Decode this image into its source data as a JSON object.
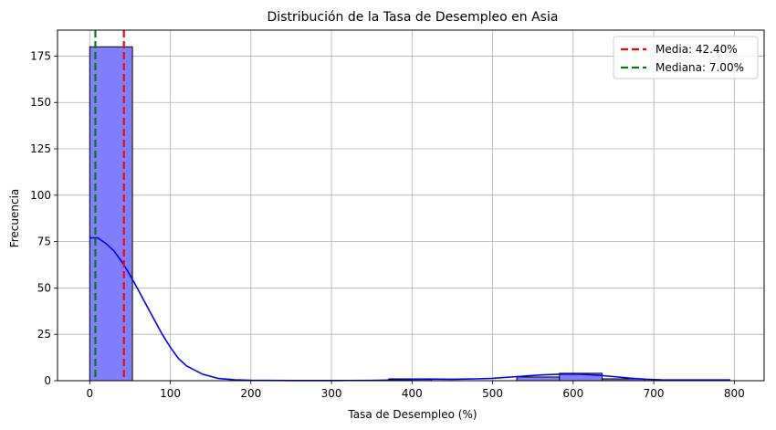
{
  "chart_data": {
    "type": "bar",
    "title": "Distribución de la Tasa de Desempleo en Asia",
    "xlabel": "Tasa de Desempleo (%)",
    "ylabel": "Frecuencia",
    "xlim": [
      -40,
      837
    ],
    "ylim": [
      0,
      189
    ],
    "xticks": [
      0,
      100,
      200,
      300,
      400,
      500,
      600,
      700,
      800
    ],
    "yticks": [
      0,
      25,
      50,
      75,
      100,
      125,
      150,
      175
    ],
    "grid": true,
    "legend_position": "top-right",
    "bar_color": "#8080ff",
    "bars": [
      {
        "x0": 0,
        "x1": 53,
        "count": 180
      },
      {
        "x0": 53,
        "x1": 106,
        "count": 0
      },
      {
        "x0": 106,
        "x1": 159,
        "count": 0
      },
      {
        "x0": 159,
        "x1": 212,
        "count": 0
      },
      {
        "x0": 212,
        "x1": 265,
        "count": 0
      },
      {
        "x0": 265,
        "x1": 318,
        "count": 0
      },
      {
        "x0": 318,
        "x1": 371,
        "count": 0
      },
      {
        "x0": 371,
        "x1": 424,
        "count": 1
      },
      {
        "x0": 424,
        "x1": 477,
        "count": 0
      },
      {
        "x0": 477,
        "x1": 530,
        "count": 0
      },
      {
        "x0": 530,
        "x1": 583,
        "count": 2
      },
      {
        "x0": 583,
        "x1": 636,
        "count": 4
      },
      {
        "x0": 636,
        "x1": 689,
        "count": 1
      },
      {
        "x0": 689,
        "x1": 742,
        "count": 0
      },
      {
        "x0": 742,
        "x1": 795,
        "count": 0
      }
    ],
    "kde": {
      "color": "#0000ff",
      "x": [
        0,
        10,
        20,
        30,
        40,
        50,
        60,
        70,
        80,
        90,
        100,
        110,
        120,
        140,
        160,
        180,
        200,
        250,
        300,
        350,
        380,
        400,
        420,
        450,
        480,
        500,
        530,
        560,
        590,
        610,
        630,
        650,
        670,
        690,
        710,
        740,
        770,
        795
      ],
      "y": [
        77,
        77,
        74,
        70,
        64,
        57,
        49,
        41,
        33,
        25,
        18,
        12,
        8,
        3.5,
        1.2,
        0.5,
        0.2,
        0.1,
        0.1,
        0.15,
        0.4,
        0.7,
        0.9,
        0.8,
        1.0,
        1.3,
        2.2,
        3.1,
        3.6,
        3.5,
        3.0,
        2.2,
        1.4,
        0.8,
        0.5,
        0.4,
        0.4,
        0.4
      ]
    },
    "lines": [
      {
        "name": "Media: 42.40%",
        "x": 42.4,
        "color": "#ff0000"
      },
      {
        "name": "Mediana: 7.00%",
        "x": 7.0,
        "color": "#008000"
      }
    ]
  }
}
